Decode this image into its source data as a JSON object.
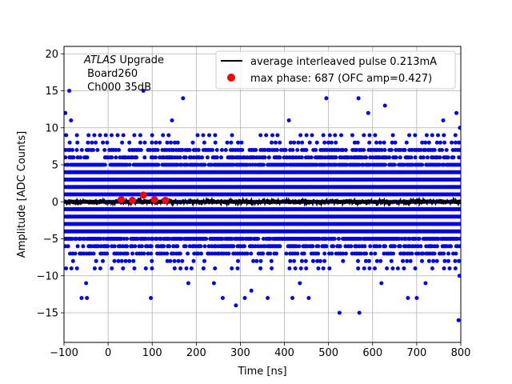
{
  "chart_data": {
    "type": "scatter",
    "xlabel": "Time [ns]",
    "ylabel": "Amplitude [ADC Counts]",
    "xlim": [
      -100,
      800
    ],
    "ylim": [
      -19,
      21
    ],
    "xticks": [
      -100,
      0,
      100,
      200,
      300,
      400,
      500,
      600,
      700,
      800
    ],
    "yticks": [
      -15,
      -10,
      -5,
      0,
      5,
      10,
      15,
      20
    ],
    "grid": true,
    "legend_position": "top-right",
    "annotation": {
      "italic_prefix": "ATLAS",
      "lines": [
        " Upgrade",
        " Board260",
        " Ch000 35dB"
      ]
    },
    "series": [
      {
        "name": "average interleaved pulse 0.213mA",
        "kind": "line",
        "color": "#000000",
        "approx_level": 0.0,
        "approx_noise": 0.35
      },
      {
        "name": "max phase: 687 (OFC amp=0.427)",
        "kind": "markers",
        "color": "#ff0000",
        "x": [
          30,
          55,
          80,
          105,
          130
        ],
        "y": [
          0.3,
          0.2,
          0.9,
          0.3,
          0.2
        ]
      },
      {
        "name": "",
        "kind": "samples",
        "color": "#0000ff",
        "dense_levels": [
          -6,
          -5,
          -4,
          -3,
          -2,
          -1,
          0,
          1,
          2,
          3,
          4,
          5,
          6
        ],
        "sparse_levels": [
          -9,
          -8,
          -7,
          7,
          8,
          9
        ],
        "outliers": [
          {
            "x": -97,
            "y": 12
          },
          {
            "x": -88,
            "y": 15
          },
          {
            "x": -84,
            "y": 11
          },
          {
            "x": -60,
            "y": -13
          },
          {
            "x": -48,
            "y": -13
          },
          {
            "x": -50,
            "y": -11
          },
          {
            "x": 80,
            "y": 15
          },
          {
            "x": 97,
            "y": -13
          },
          {
            "x": 170,
            "y": 14
          },
          {
            "x": 182,
            "y": -11
          },
          {
            "x": 240,
            "y": -11
          },
          {
            "x": 260,
            "y": -13
          },
          {
            "x": 290,
            "y": -14
          },
          {
            "x": 310,
            "y": -13
          },
          {
            "x": 325,
            "y": -12
          },
          {
            "x": 362,
            "y": -13
          },
          {
            "x": 418,
            "y": -13
          },
          {
            "x": 435,
            "y": -11
          },
          {
            "x": 455,
            "y": -13
          },
          {
            "x": 495,
            "y": 14
          },
          {
            "x": 525,
            "y": -15
          },
          {
            "x": 568,
            "y": 14
          },
          {
            "x": 570,
            "y": -15
          },
          {
            "x": 620,
            "y": -11
          },
          {
            "x": 628,
            "y": 13
          },
          {
            "x": 680,
            "y": -13
          },
          {
            "x": 700,
            "y": -13
          },
          {
            "x": 720,
            "y": -11
          },
          {
            "x": 760,
            "y": 11
          },
          {
            "x": 790,
            "y": 12
          },
          {
            "x": 795,
            "y": -16
          },
          {
            "x": 797,
            "y": -10
          },
          {
            "x": 798,
            "y": 10
          },
          {
            "x": 145,
            "y": 11
          },
          {
            "x": 410,
            "y": 11
          },
          {
            "x": 590,
            "y": 12
          }
        ]
      }
    ]
  }
}
